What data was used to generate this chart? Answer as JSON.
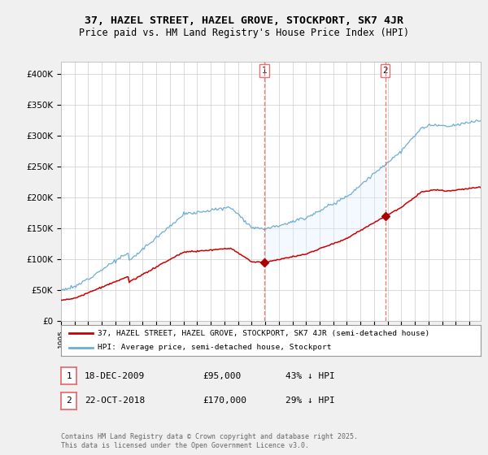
{
  "title": "37, HAZEL STREET, HAZEL GROVE, STOCKPORT, SK7 4JR",
  "subtitle": "Price paid vs. HM Land Registry's House Price Index (HPI)",
  "legend_line1": "37, HAZEL STREET, HAZEL GROVE, STOCKPORT, SK7 4JR (semi-detached house)",
  "legend_line2": "HPI: Average price, semi-detached house, Stockport",
  "footnote": "Contains HM Land Registry data © Crown copyright and database right 2025.\nThis data is licensed under the Open Government Licence v3.0.",
  "annotation1_num": "1",
  "annotation1_date": "18-DEC-2009",
  "annotation1_price": "£95,000",
  "annotation1_hpi": "43% ↓ HPI",
  "annotation2_num": "2",
  "annotation2_date": "22-OCT-2018",
  "annotation2_price": "£170,000",
  "annotation2_hpi": "29% ↓ HPI",
  "hpi_color": "#6baed6",
  "price_color": "#cc0000",
  "vline_color": "#e87070",
  "dot_color": "#aa0000",
  "shade_color": "#ddeeff",
  "background_color": "#f0f0f0",
  "plot_bg_color": "#ffffff",
  "ylim": [
    0,
    420000
  ],
  "yticks": [
    0,
    50000,
    100000,
    150000,
    200000,
    250000,
    300000,
    350000,
    400000
  ],
  "ytick_labels": [
    "£0",
    "£50K",
    "£100K",
    "£150K",
    "£200K",
    "£250K",
    "£300K",
    "£350K",
    "£400K"
  ],
  "xmin": 1995.0,
  "xmax": 2025.83,
  "point1_x": 2009.96,
  "point1_y": 95000,
  "point2_x": 2018.81,
  "point2_y": 170000
}
